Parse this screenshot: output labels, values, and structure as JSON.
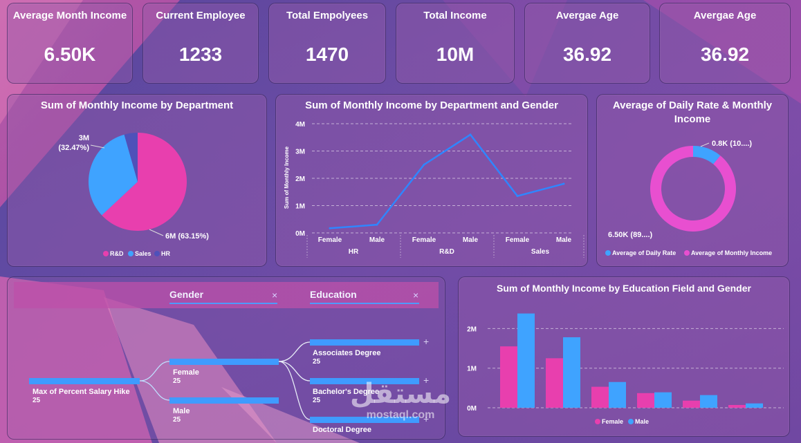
{
  "kpis": [
    {
      "title": "Average Month Income",
      "value": "6.50K"
    },
    {
      "title": "Current Employee",
      "value": "1233"
    },
    {
      "title": "Total Empolyees",
      "value": "1470"
    },
    {
      "title": "Total Income",
      "value": "10M"
    },
    {
      "title": "Avergae Age",
      "value": "36.92"
    },
    {
      "title": "Avergae Age",
      "value": "36.92"
    }
  ],
  "colors": {
    "pink": "#e83fae",
    "blue": "#3fa3ff",
    "navy": "#4f51b9",
    "donut_pink": "#e84fd0",
    "line": "#2f86ff"
  },
  "pie": {
    "title": "Sum of Monthly Income by Department",
    "labels": {
      "sales_line1": "3M",
      "sales_line2": "(32.47%)",
      "rd": "6M (63.15%)"
    },
    "legend": [
      "R&D",
      "Sales",
      "HR"
    ]
  },
  "line": {
    "title": "Sum of Monthly Income by Department and Gender",
    "ylabel": "Sum of Monthly Income",
    "y_ticks": [
      "0M",
      "1M",
      "2M",
      "3M",
      "4M"
    ],
    "x_labels": [
      "Female",
      "Male",
      "Female",
      "Male",
      "Female",
      "Male"
    ],
    "groups": [
      "HR",
      "R&D",
      "Sales"
    ]
  },
  "donut": {
    "title": "Average of Daily Rate & Monthly Income",
    "labels": {
      "small": "0.8K (10....)",
      "large": "6.50K (89....)"
    },
    "legend": [
      "Average of Daily Rate",
      "Average of Monthly Income"
    ]
  },
  "tree": {
    "filters": {
      "gender": "Gender",
      "education": "Education",
      "close": "×"
    },
    "root": {
      "label": "Max of Percent Salary Hike",
      "value": "25"
    },
    "gender_nodes": [
      {
        "label": "Female",
        "value": "25"
      },
      {
        "label": "Male",
        "value": "25"
      }
    ],
    "edu_nodes": [
      {
        "label": "Associates Degree",
        "value": "25"
      },
      {
        "label": "Bachelor's Degree",
        "value": "25"
      },
      {
        "label": "Doctoral Degree",
        "value": ""
      }
    ],
    "plus": "+"
  },
  "watermark": {
    "arabic": "مستقل",
    "latin": "mostaql.com"
  },
  "bar": {
    "title": "Sum of Monthly Income by Education Field and Gender",
    "y_ticks": [
      "0M",
      "1M",
      "2M"
    ],
    "legend": [
      "Female",
      "Male"
    ]
  },
  "chart_data": [
    {
      "type": "pie",
      "title": "Sum of Monthly Income by Department",
      "categories": [
        "R&D",
        "Sales",
        "HR"
      ],
      "values": [
        6.0,
        3.1,
        0.42
      ],
      "percentages": [
        63.15,
        32.47,
        4.38
      ],
      "legend": "bottom"
    },
    {
      "type": "line",
      "title": "Sum of Monthly Income by Department and Gender",
      "ylabel": "Sum of Monthly Income",
      "categories": [
        "HR Female",
        "HR Male",
        "R&D Female",
        "R&D Male",
        "Sales Female",
        "Sales Male"
      ],
      "series": [
        {
          "values": [
            0.17,
            0.3,
            2.5,
            3.6,
            1.35,
            1.8
          ]
        }
      ],
      "ylim": [
        0,
        4
      ],
      "grid": true
    },
    {
      "type": "pie",
      "title": "Average of Daily Rate & Monthly Income",
      "categories": [
        "Average of Daily Rate",
        "Average of Monthly Income"
      ],
      "values": [
        0.8,
        6.5
      ],
      "percentages": [
        10.9,
        89.1
      ],
      "legend": "bottom"
    },
    {
      "type": "bar",
      "title": "Sum of Monthly Income by Education Field and Gender",
      "series": [
        {
          "name": "Female",
          "values": [
            1.55,
            1.25,
            0.53,
            0.37,
            0.18,
            0.07
          ]
        },
        {
          "name": "Male",
          "values": [
            2.38,
            1.78,
            0.65,
            0.39,
            0.32,
            0.11
          ]
        }
      ],
      "ylim": [
        0,
        2.6
      ],
      "grid": true,
      "legend": "bottom"
    }
  ]
}
